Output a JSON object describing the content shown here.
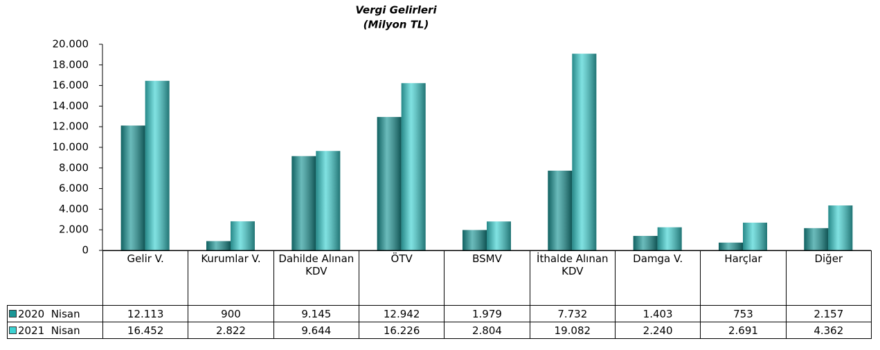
{
  "chart_data": {
    "type": "bar",
    "title": "Vergi Gelirleri",
    "subtitle": "(Milyon TL)",
    "categories": [
      "Gelir V.",
      "Kurumlar V.",
      "Dahilde Alınan KDV",
      "ÖTV",
      "BSMV",
      "İthalde Alınan KDV",
      "Damga V.",
      "Harçlar",
      "Diğer"
    ],
    "series": [
      {
        "name": "2020  Nisan",
        "color": "#1a9696",
        "values": [
          12113,
          900,
          9145,
          12942,
          1979,
          7732,
          1403,
          753,
          2157
        ],
        "value_labels": [
          "12.113",
          "900",
          "9.145",
          "12.942",
          "1.979",
          "7.732",
          "1.403",
          "753",
          "2.157"
        ]
      },
      {
        "name": "2021  Nisan",
        "color": "#3cd2d2",
        "values": [
          16452,
          2822,
          9644,
          16226,
          2804,
          19082,
          2240,
          2691,
          4362
        ],
        "value_labels": [
          "16.452",
          "2.822",
          "9.644",
          "16.226",
          "2.804",
          "19.082",
          "2.240",
          "2.691",
          "4.362"
        ]
      }
    ],
    "ylim": [
      0,
      20000
    ],
    "yticks": [
      0,
      {
        "value": 2000,
        "label": "2.000"
      },
      {
        "value": 4000,
        "label": "4.000"
      },
      {
        "value": 6000,
        "label": "6.000"
      },
      {
        "value": 8000,
        "label": "8.000"
      },
      {
        "value": 10000,
        "label": "10.000"
      },
      {
        "value": 12000,
        "label": "12.000"
      },
      {
        "value": 14000,
        "label": "14.000"
      },
      {
        "value": 16000,
        "label": "16.000"
      },
      {
        "value": 18000,
        "label": "18.000"
      },
      {
        "value": 20000,
        "label": "20.000"
      }
    ],
    "grid": false
  }
}
